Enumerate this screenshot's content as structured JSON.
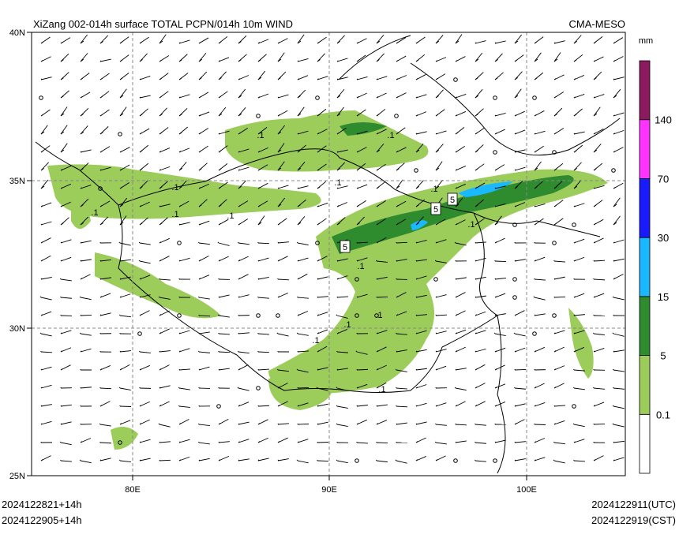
{
  "header": {
    "title": "XiZang 002-014h surface TOTAL PCPN/014h 10m WIND",
    "source": "CMA-MESO"
  },
  "map": {
    "lat_labels": [
      "40N",
      "35N",
      "30N",
      "25N"
    ],
    "lon_labels": [
      "80E",
      "90E",
      "100E"
    ],
    "contour_labels": [
      ".1",
      ".1",
      ".1",
      ".1",
      ".1",
      ".1",
      ".1",
      ".1",
      ".1",
      ".1",
      ".1",
      ".1",
      ".1",
      ".1",
      "5",
      "5",
      "5"
    ]
  },
  "colorbar": {
    "unit": "mm",
    "levels": [
      "0.1",
      "5",
      "15",
      "30",
      "70",
      "140"
    ],
    "colors": [
      "#ffffff",
      "#9ccc5a",
      "#2e8b2e",
      "#1ab8ff",
      "#1a1aff",
      "#ff33ff",
      "#8b1a5e"
    ]
  },
  "footer": {
    "left": [
      "2024122821+14h",
      "2024122905+14h"
    ],
    "right": [
      "2024122911(UTC)",
      "2024122919(CST)"
    ]
  }
}
